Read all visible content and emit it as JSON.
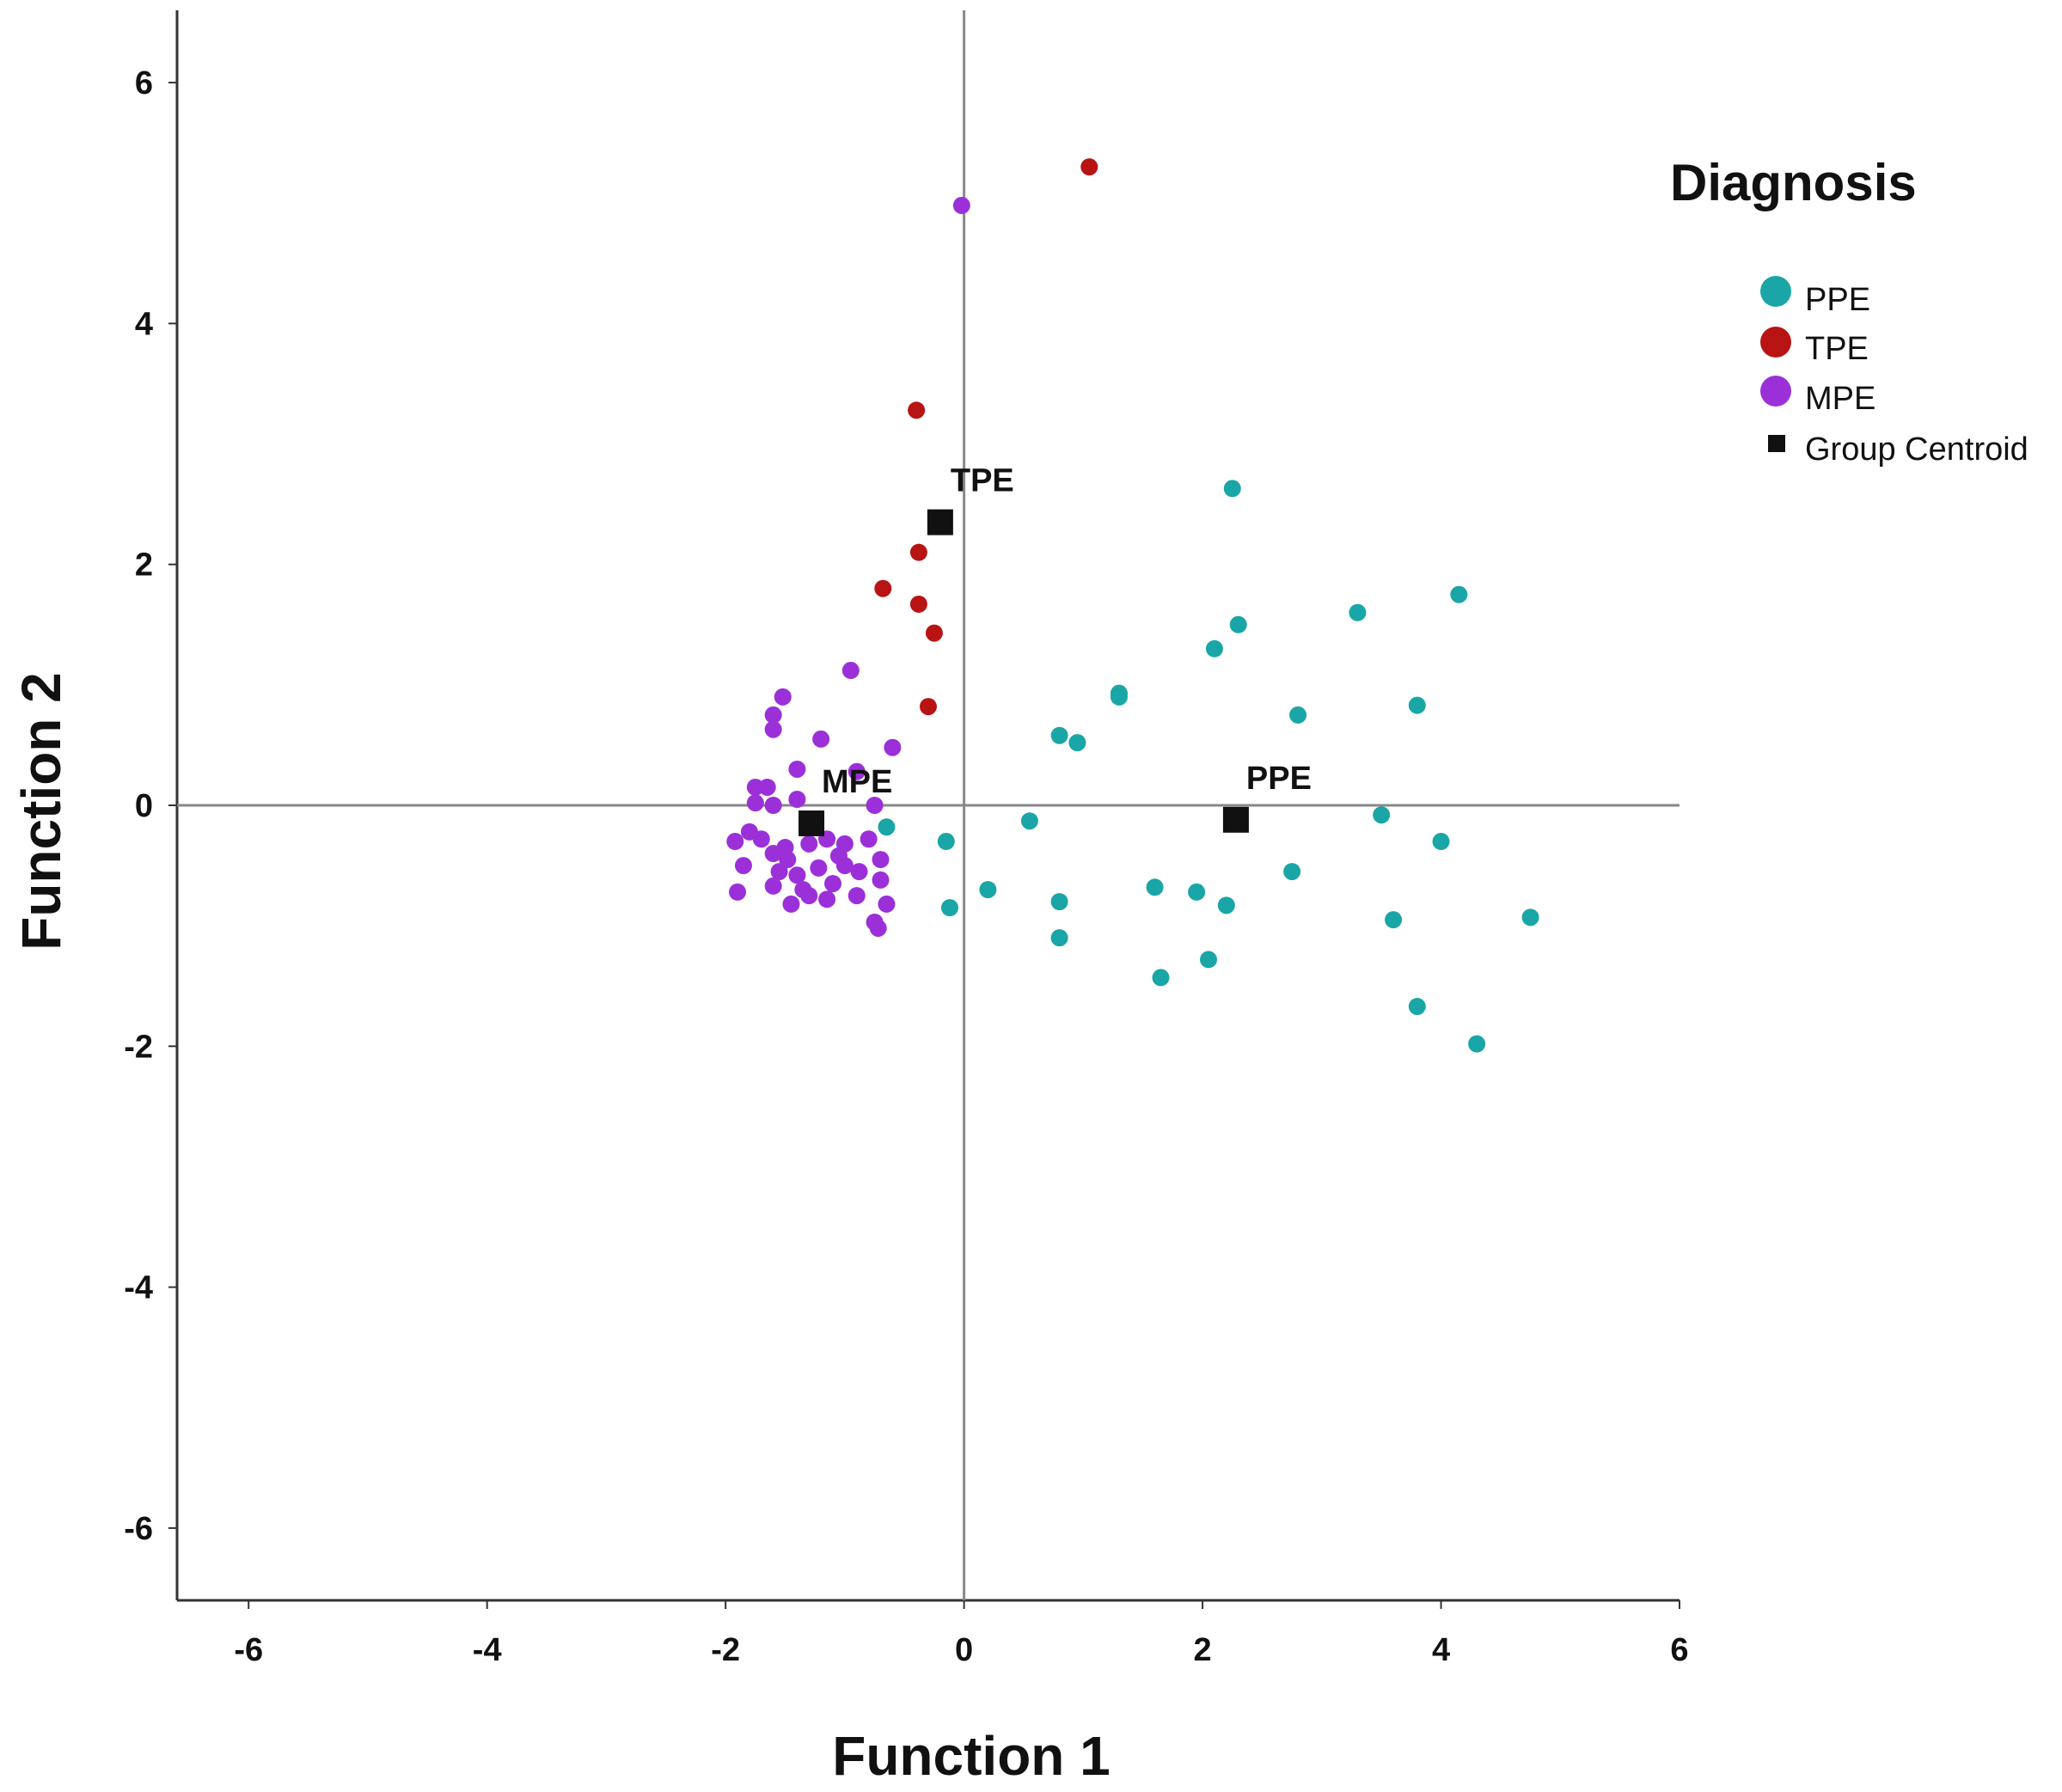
{
  "chart_data": {
    "type": "scatter",
    "xlabel": "Function 1",
    "ylabel": "Function 2",
    "xlim": [
      -6.6,
      6
    ],
    "ylim": [
      -6.6,
      6.6
    ],
    "xticks": [
      -6,
      -4,
      -2,
      0,
      2,
      4,
      6
    ],
    "yticks": [
      -6,
      -4,
      -2,
      0,
      2,
      4,
      6
    ],
    "reference_lines": {
      "x": 0,
      "y": 0
    },
    "legend": {
      "title": "Diagnosis",
      "placement": "top-right",
      "entries": [
        {
          "label": "PPE",
          "marker": "circle",
          "color": "#1aa6a6"
        },
        {
          "label": "TPE",
          "marker": "circle",
          "color": "#b81414"
        },
        {
          "label": "MPE",
          "marker": "circle",
          "color": "#9b30d9"
        },
        {
          "label": "Group Centroid",
          "marker": "square",
          "color": "#111111"
        }
      ]
    },
    "series": [
      {
        "name": "PPE",
        "color": "#1aa6a6",
        "points": [
          [
            2.25,
            2.63
          ],
          [
            4.15,
            1.75
          ],
          [
            3.3,
            1.6
          ],
          [
            2.3,
            1.5
          ],
          [
            2.1,
            1.3
          ],
          [
            1.3,
            0.9
          ],
          [
            1.3,
            0.93
          ],
          [
            2.8,
            0.75
          ],
          [
            3.8,
            0.83
          ],
          [
            0.8,
            0.58
          ],
          [
            0.95,
            0.52
          ],
          [
            3.5,
            -0.08
          ],
          [
            -0.65,
            -0.18
          ],
          [
            0.55,
            -0.13
          ],
          [
            -0.15,
            -0.3
          ],
          [
            4.0,
            -0.3
          ],
          [
            2.75,
            -0.55
          ],
          [
            0.2,
            -0.7
          ],
          [
            1.6,
            -0.68
          ],
          [
            1.95,
            -0.72
          ],
          [
            -0.12,
            -0.85
          ],
          [
            0.8,
            -0.8
          ],
          [
            2.2,
            -0.83
          ],
          [
            3.6,
            -0.95
          ],
          [
            4.75,
            -0.93
          ],
          [
            0.8,
            -1.1
          ],
          [
            2.05,
            -1.28
          ],
          [
            1.65,
            -1.43
          ],
          [
            3.8,
            -1.67
          ],
          [
            4.3,
            -1.98
          ]
        ]
      },
      {
        "name": "TPE",
        "color": "#b81414",
        "points": [
          [
            1.05,
            5.3
          ],
          [
            -0.4,
            3.28
          ],
          [
            -0.38,
            2.1
          ],
          [
            -0.68,
            1.8
          ],
          [
            -0.38,
            1.67
          ],
          [
            -0.25,
            1.43
          ],
          [
            -0.3,
            0.82
          ]
        ]
      },
      {
        "name": "MPE",
        "color": "#9b30d9",
        "points": [
          [
            -0.02,
            4.98
          ],
          [
            -0.95,
            1.12
          ],
          [
            -1.52,
            0.9
          ],
          [
            -1.6,
            0.75
          ],
          [
            -1.6,
            0.63
          ],
          [
            -1.2,
            0.55
          ],
          [
            -0.6,
            0.48
          ],
          [
            -1.4,
            0.3
          ],
          [
            -1.65,
            0.15
          ],
          [
            -1.75,
            0.15
          ],
          [
            -1.4,
            0.05
          ],
          [
            -1.6,
            0.0
          ],
          [
            -1.75,
            0.02
          ],
          [
            -0.75,
            0.0
          ],
          [
            -0.9,
            0.28
          ],
          [
            -1.8,
            -0.22
          ],
          [
            -1.92,
            -0.3
          ],
          [
            -1.7,
            -0.28
          ],
          [
            -1.6,
            -0.4
          ],
          [
            -1.48,
            -0.45
          ],
          [
            -1.3,
            -0.32
          ],
          [
            -1.15,
            -0.28
          ],
          [
            -1.0,
            -0.32
          ],
          [
            -0.8,
            -0.28
          ],
          [
            -0.7,
            -0.45
          ],
          [
            -1.85,
            -0.5
          ],
          [
            -1.55,
            -0.55
          ],
          [
            -1.4,
            -0.58
          ],
          [
            -1.22,
            -0.52
          ],
          [
            -1.0,
            -0.5
          ],
          [
            -0.88,
            -0.55
          ],
          [
            -1.6,
            -0.67
          ],
          [
            -1.35,
            -0.7
          ],
          [
            -1.1,
            -0.65
          ],
          [
            -0.7,
            -0.62
          ],
          [
            -1.9,
            -0.72
          ],
          [
            -1.45,
            -0.82
          ],
          [
            -1.3,
            -0.75
          ],
          [
            -1.15,
            -0.78
          ],
          [
            -0.9,
            -0.75
          ],
          [
            -0.65,
            -0.82
          ],
          [
            -0.75,
            -0.97
          ],
          [
            -0.72,
            -1.02
          ],
          [
            -1.05,
            -0.42
          ],
          [
            -1.5,
            -0.35
          ]
        ]
      }
    ],
    "centroids": [
      {
        "label": "TPE",
        "x": -0.2,
        "y": 2.35
      },
      {
        "label": "MPE",
        "x": -1.28,
        "y": -0.15
      },
      {
        "label": "PPE",
        "x": 2.28,
        "y": -0.12
      }
    ]
  }
}
